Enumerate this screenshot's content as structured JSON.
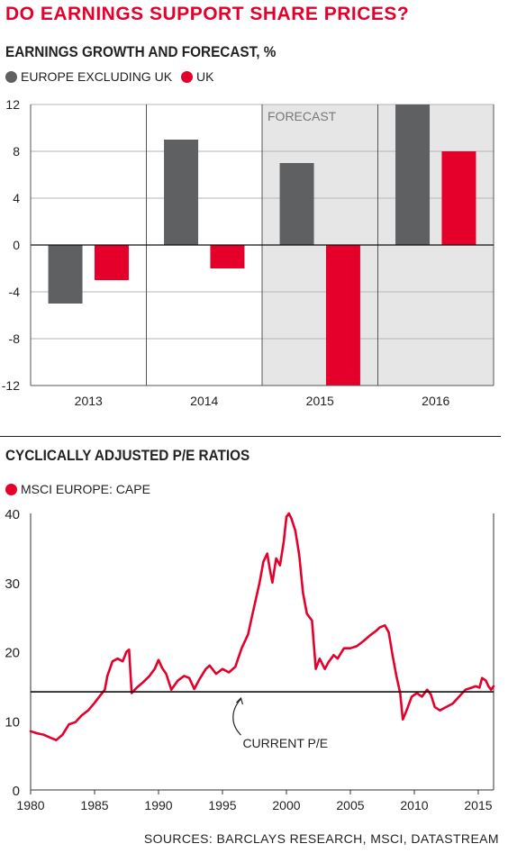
{
  "headline": "DO EARNINGS SUPPORT SHARE PRICES?",
  "source": "SOURCES: BARCLAYS RESEARCH, MSCI, DATASTREAM",
  "colors": {
    "accent": "#e4002b",
    "grey": "#5f6062",
    "forecast_bg": "#e6e6e6"
  },
  "chart_data": [
    {
      "type": "bar",
      "title": "EARNINGS GROWTH AND FORECAST, %",
      "categories": [
        "2013",
        "2014",
        "2015",
        "2016"
      ],
      "series": [
        {
          "name": "EUROPE EXCLUDING UK",
          "values": [
            -5,
            9,
            7,
            12
          ]
        },
        {
          "name": "UK",
          "values": [
            -3,
            -2,
            -12,
            8
          ]
        }
      ],
      "ylim": [
        -12,
        12
      ],
      "yticks": [
        "12",
        "8",
        "4",
        "0",
        "-4",
        "-8",
        "-12"
      ],
      "annotation": "FORECAST",
      "forecast_categories": [
        "2015",
        "2016"
      ],
      "grid": true,
      "legend": "top-left"
    },
    {
      "type": "line",
      "title": "CYCLICALLY ADJUSTED P/E RATIOS",
      "series": [
        {
          "name": "MSCI EUROPE: CAPE",
          "x": [
            1980,
            1980.5,
            1981,
            1981.5,
            1982,
            1982.5,
            1983,
            1983.5,
            1984,
            1984.5,
            1985,
            1985.5,
            1985.8,
            1986,
            1986.4,
            1986.8,
            1987.2,
            1987.5,
            1987.7,
            1987.9,
            1988.3,
            1988.8,
            1989.3,
            1989.7,
            1990,
            1990.3,
            1990.6,
            1991,
            1991.5,
            1992,
            1992.4,
            1992.8,
            1993.2,
            1993.7,
            1994,
            1994.5,
            1995,
            1995.5,
            1996,
            1996.5,
            1997,
            1997.3,
            1997.6,
            1997.9,
            1998.2,
            1998.5,
            1998.7,
            1998.9,
            1999.2,
            1999.5,
            1999.8,
            2000,
            2000.2,
            2000.4,
            2000.7,
            2001,
            2001.3,
            2001.6,
            2002,
            2002.3,
            2002.6,
            2003,
            2003.3,
            2003.7,
            2004,
            2004.5,
            2005,
            2005.5,
            2006,
            2006.5,
            2007,
            2007.3,
            2007.7,
            2008,
            2008.3,
            2008.6,
            2008.9,
            2009.1,
            2009.4,
            2009.8,
            2010.2,
            2010.6,
            2011,
            2011.3,
            2011.6,
            2012,
            2012.5,
            2013,
            2013.5,
            2014,
            2014.5,
            2014.8,
            2015.1,
            2015.3,
            2015.6,
            2015.8,
            2016,
            2016.2
          ],
          "values": [
            8.5,
            8.2,
            8.0,
            7.6,
            7.2,
            8.0,
            9.5,
            9.8,
            10.8,
            11.5,
            12.6,
            13.8,
            14.5,
            16.5,
            18.6,
            19.0,
            18.6,
            20.0,
            20.3,
            14.0,
            14.8,
            15.6,
            16.5,
            17.5,
            18.8,
            17.6,
            16.8,
            14.5,
            15.8,
            16.5,
            16.2,
            14.6,
            16.0,
            17.5,
            18.0,
            16.8,
            17.5,
            17.0,
            17.8,
            20.5,
            22.5,
            25.0,
            27.5,
            30.0,
            33.0,
            34.2,
            32.0,
            30.0,
            33.5,
            32.5,
            36.0,
            39.5,
            40.0,
            39.2,
            37.5,
            34.0,
            28.5,
            25.5,
            24.5,
            17.5,
            19.0,
            17.5,
            18.5,
            19.5,
            19.0,
            20.5,
            20.5,
            20.8,
            21.5,
            22.3,
            23.0,
            23.5,
            23.8,
            22.8,
            19.5,
            16.5,
            14.0,
            10.2,
            11.5,
            13.5,
            14.0,
            13.5,
            14.5,
            13.8,
            12.0,
            11.5,
            12.0,
            12.5,
            13.5,
            14.5,
            14.8,
            15.0,
            14.8,
            16.2,
            15.8,
            15.0,
            14.5,
            15.0
          ]
        }
      ],
      "xlim": [
        1980,
        2016.2
      ],
      "ylim": [
        0,
        40
      ],
      "xticks": [
        "1980",
        "1985",
        "1990",
        "1995",
        "2000",
        "2005",
        "2010",
        "2015"
      ],
      "yticks": [
        "40",
        "30",
        "20",
        "10",
        "0"
      ],
      "reference_value": 14.2,
      "annotation": "CURRENT P/E",
      "legend": "top-left"
    }
  ]
}
